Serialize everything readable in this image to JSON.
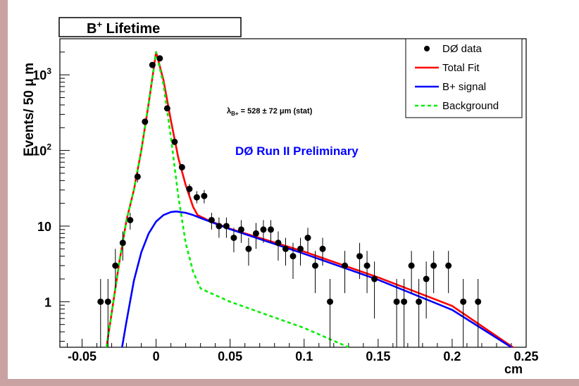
{
  "chart_data": {
    "type": "scatter",
    "title": "B",
    "title_sup": "+",
    "title_suffix": " Lifetime",
    "xlabel": "cm",
    "ylabel": "Events/ 50  μ m",
    "xlim": [
      -0.065,
      0.25
    ],
    "ylim": [
      0.25,
      3000
    ],
    "yscale": "log",
    "xticks": [
      -0.05,
      0,
      0.05,
      0.1,
      0.15,
      0.2,
      0.25
    ],
    "xtick_labels": [
      "-0.05",
      "0",
      "0.05",
      "0.1",
      "0.15",
      "0.2",
      "0.25"
    ],
    "yticks": [
      1,
      10,
      100,
      1000
    ],
    "ytick_labels": [
      {
        "base": "1",
        "sup": ""
      },
      {
        "base": "10",
        "sup": ""
      },
      {
        "base": "10",
        "sup": "2"
      },
      {
        "base": "10",
        "sup": "3"
      }
    ],
    "annotation": {
      "lambda": "λ",
      "sub": "B+",
      "text": " = 528 ± 72 μm (stat)"
    },
    "preliminary_label": "DØ Run II Preliminary",
    "legend_position": "top-right",
    "legend": [
      {
        "name": "DØ data",
        "kind": "marker",
        "color": "#000000"
      },
      {
        "name": "Total Fit",
        "kind": "line",
        "color": "#ff0000",
        "dash": "solid"
      },
      {
        "name": "B+ signal",
        "kind": "line",
        "color": "#0000ff",
        "dash": "solid"
      },
      {
        "name": "Background",
        "kind": "line",
        "color": "#00ee00",
        "dash": "dashed"
      }
    ],
    "series": [
      {
        "name": "DØ data",
        "type": "errorbar",
        "points": [
          [
            -0.0375,
            1,
            0.25,
            2
          ],
          [
            -0.0325,
            1,
            0.25,
            2
          ],
          [
            -0.0275,
            3,
            1.5,
            5
          ],
          [
            -0.0225,
            6,
            3.5,
            8.5
          ],
          [
            -0.0175,
            12,
            9,
            15
          ],
          [
            -0.0125,
            45,
            38,
            52
          ],
          [
            -0.0075,
            240,
            225,
            255
          ],
          [
            -0.0025,
            1350,
            1300,
            1400
          ],
          [
            0.0025,
            1650,
            1600,
            1700
          ],
          [
            0.0075,
            360,
            340,
            380
          ],
          [
            0.0125,
            130,
            120,
            140
          ],
          [
            0.0175,
            60,
            55,
            66
          ],
          [
            0.0225,
            31,
            26,
            36
          ],
          [
            0.0275,
            24,
            20,
            29
          ],
          [
            0.0325,
            25,
            20,
            30
          ],
          [
            0.0375,
            12,
            9,
            15
          ],
          [
            0.0425,
            10,
            7,
            13
          ],
          [
            0.0475,
            10,
            7,
            13
          ],
          [
            0.0525,
            7,
            4.5,
            9.5
          ],
          [
            0.0575,
            9,
            6,
            12
          ],
          [
            0.0625,
            5,
            3,
            7
          ],
          [
            0.0675,
            8,
            5,
            11
          ],
          [
            0.0725,
            9,
            6,
            12
          ],
          [
            0.0775,
            9,
            6,
            12
          ],
          [
            0.0825,
            6,
            3.5,
            8.5
          ],
          [
            0.0875,
            5,
            3,
            7
          ],
          [
            0.0925,
            4,
            2,
            6
          ],
          [
            0.0975,
            5,
            3,
            7
          ],
          [
            0.1025,
            7,
            4.5,
            9.5
          ],
          [
            0.1075,
            3,
            1.3,
            4.7
          ],
          [
            0.1125,
            5,
            3,
            7
          ],
          [
            0.1175,
            1,
            0.25,
            2
          ],
          [
            0.1275,
            3,
            1.3,
            4.7
          ],
          [
            0.1375,
            4,
            2,
            6
          ],
          [
            0.1425,
            3,
            1.3,
            4.7
          ],
          [
            0.1475,
            2,
            0.6,
            3.4
          ],
          [
            0.1625,
            1,
            0.25,
            2
          ],
          [
            0.1675,
            1,
            0.25,
            2
          ],
          [
            0.1725,
            3,
            1.3,
            4.7
          ],
          [
            0.1775,
            1,
            0.25,
            2
          ],
          [
            0.1825,
            2,
            0.6,
            3.4
          ],
          [
            0.1875,
            3,
            1.3,
            4.7
          ],
          [
            0.1975,
            3,
            1.3,
            4.7
          ],
          [
            0.2075,
            1,
            0.25,
            2
          ],
          [
            0.2175,
            1,
            0.25,
            2
          ]
        ]
      },
      {
        "name": "Total Fit",
        "type": "line",
        "color": "#ff0000",
        "points": [
          [
            -0.0335,
            0.25
          ],
          [
            -0.025,
            3.2
          ],
          [
            -0.02,
            12
          ],
          [
            -0.015,
            30
          ],
          [
            -0.01,
            100
          ],
          [
            -0.005,
            420
          ],
          [
            0,
            2000
          ],
          [
            0.005,
            850
          ],
          [
            0.01,
            250
          ],
          [
            0.015,
            80
          ],
          [
            0.02,
            35
          ],
          [
            0.025,
            18
          ],
          [
            0.028,
            14
          ],
          [
            0.035,
            12
          ],
          [
            0.05,
            9.2
          ],
          [
            0.1,
            4.6
          ],
          [
            0.15,
            2.1
          ],
          [
            0.2,
            0.88
          ],
          [
            0.241,
            0.25
          ]
        ]
      },
      {
        "name": "B+ signal",
        "type": "line",
        "color": "#0000ff",
        "points": [
          [
            -0.023,
            0.25
          ],
          [
            -0.02,
            0.55
          ],
          [
            -0.015,
            1.9
          ],
          [
            -0.01,
            4.5
          ],
          [
            -0.005,
            8
          ],
          [
            0,
            11.5
          ],
          [
            0.005,
            14
          ],
          [
            0.01,
            15.3
          ],
          [
            0.0135,
            15.6
          ],
          [
            0.02,
            15
          ],
          [
            0.025,
            14
          ],
          [
            0.03,
            12.8
          ],
          [
            0.04,
            10.8
          ],
          [
            0.05,
            9.1
          ],
          [
            0.1,
            4.3
          ],
          [
            0.15,
            1.95
          ],
          [
            0.2,
            0.78
          ],
          [
            0.24,
            0.25
          ]
        ]
      },
      {
        "name": "Background",
        "type": "line",
        "dash": "dashed",
        "color": "#00ee00",
        "points": [
          [
            -0.0335,
            0.25
          ],
          [
            -0.025,
            3.2
          ],
          [
            -0.02,
            12
          ],
          [
            -0.015,
            30
          ],
          [
            -0.01,
            100
          ],
          [
            -0.005,
            420
          ],
          [
            0,
            2000
          ],
          [
            0.005,
            750
          ],
          [
            0.01,
            150
          ],
          [
            0.015,
            25
          ],
          [
            0.02,
            6
          ],
          [
            0.025,
            2.5
          ],
          [
            0.03,
            1.5
          ],
          [
            0.035,
            1.35
          ],
          [
            0.05,
            1.0
          ],
          [
            0.1,
            0.45
          ],
          [
            0.13,
            0.25
          ]
        ]
      }
    ]
  }
}
